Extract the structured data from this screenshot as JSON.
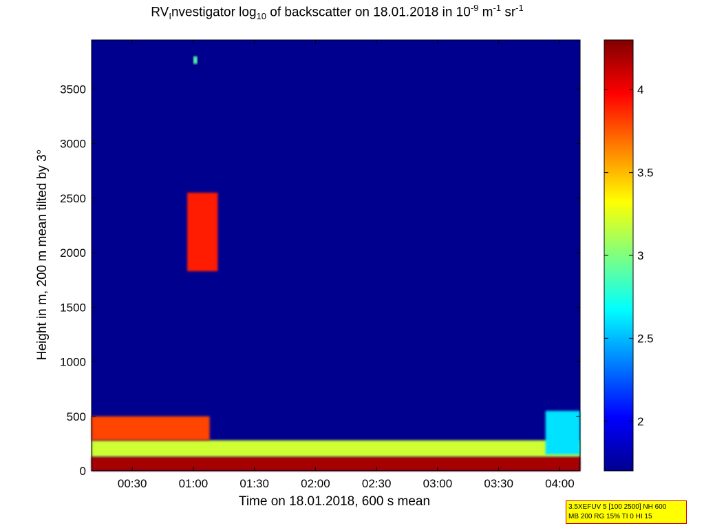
{
  "title": {
    "part1": "RV",
    "sub1": "I",
    "part2": "nvestigator log",
    "sub2": "10",
    "part3": " of backscatter on 18.01.2018 in 10",
    "sup1": "-9",
    "part4": " m",
    "sup2": "-1",
    "part5": " sr",
    "sup3": "-1"
  },
  "info_lines": [
    "3.5XEFUV 5 [100 2500] NH 600",
    "MB 200 RG 15% TI 0 HI 15"
  ],
  "chart_data": {
    "type": "heatmap",
    "xlabel": "Time on 18.01.2018, 600 s mean",
    "ylabel": "Height in m, 200 m mean tilted by 3°",
    "xlim_minutes": [
      10,
      250
    ],
    "ylim": [
      0,
      3950
    ],
    "xticks": [
      {
        "minutes": 30,
        "label": "00:30"
      },
      {
        "minutes": 60,
        "label": "01:00"
      },
      {
        "minutes": 90,
        "label": "01:30"
      },
      {
        "minutes": 120,
        "label": "02:00"
      },
      {
        "minutes": 150,
        "label": "02:30"
      },
      {
        "minutes": 180,
        "label": "03:00"
      },
      {
        "minutes": 210,
        "label": "03:30"
      },
      {
        "minutes": 240,
        "label": "04:00"
      }
    ],
    "yticks": [
      0,
      500,
      1000,
      1500,
      2000,
      2500,
      3000,
      3500
    ],
    "colorbar": {
      "range": [
        1.7,
        4.3
      ],
      "ticks": [
        2,
        2.5,
        3,
        3.5,
        4
      ],
      "colormap": "jet"
    },
    "background_value": 1.7,
    "features": [
      {
        "kind": "surface_layer",
        "t": [
          10,
          250
        ],
        "h": [
          0,
          130
        ],
        "value": 4.2
      },
      {
        "kind": "boundary_layer",
        "t": [
          10,
          250
        ],
        "h": [
          130,
          280
        ],
        "value": 3.2
      },
      {
        "kind": "aerosol_layer",
        "t": [
          10,
          68
        ],
        "h": [
          280,
          500
        ],
        "value": 3.8
      },
      {
        "kind": "cloud",
        "t": [
          57,
          72
        ],
        "h": [
          1830,
          2550
        ],
        "value": 3.9
      },
      {
        "kind": "cloud",
        "t": [
          60,
          62
        ],
        "h": [
          3730,
          3800
        ],
        "value": 2.9
      },
      {
        "kind": "aerosol_layer",
        "t": [
          233,
          250
        ],
        "h": [
          150,
          550
        ],
        "value": 2.6
      }
    ]
  }
}
